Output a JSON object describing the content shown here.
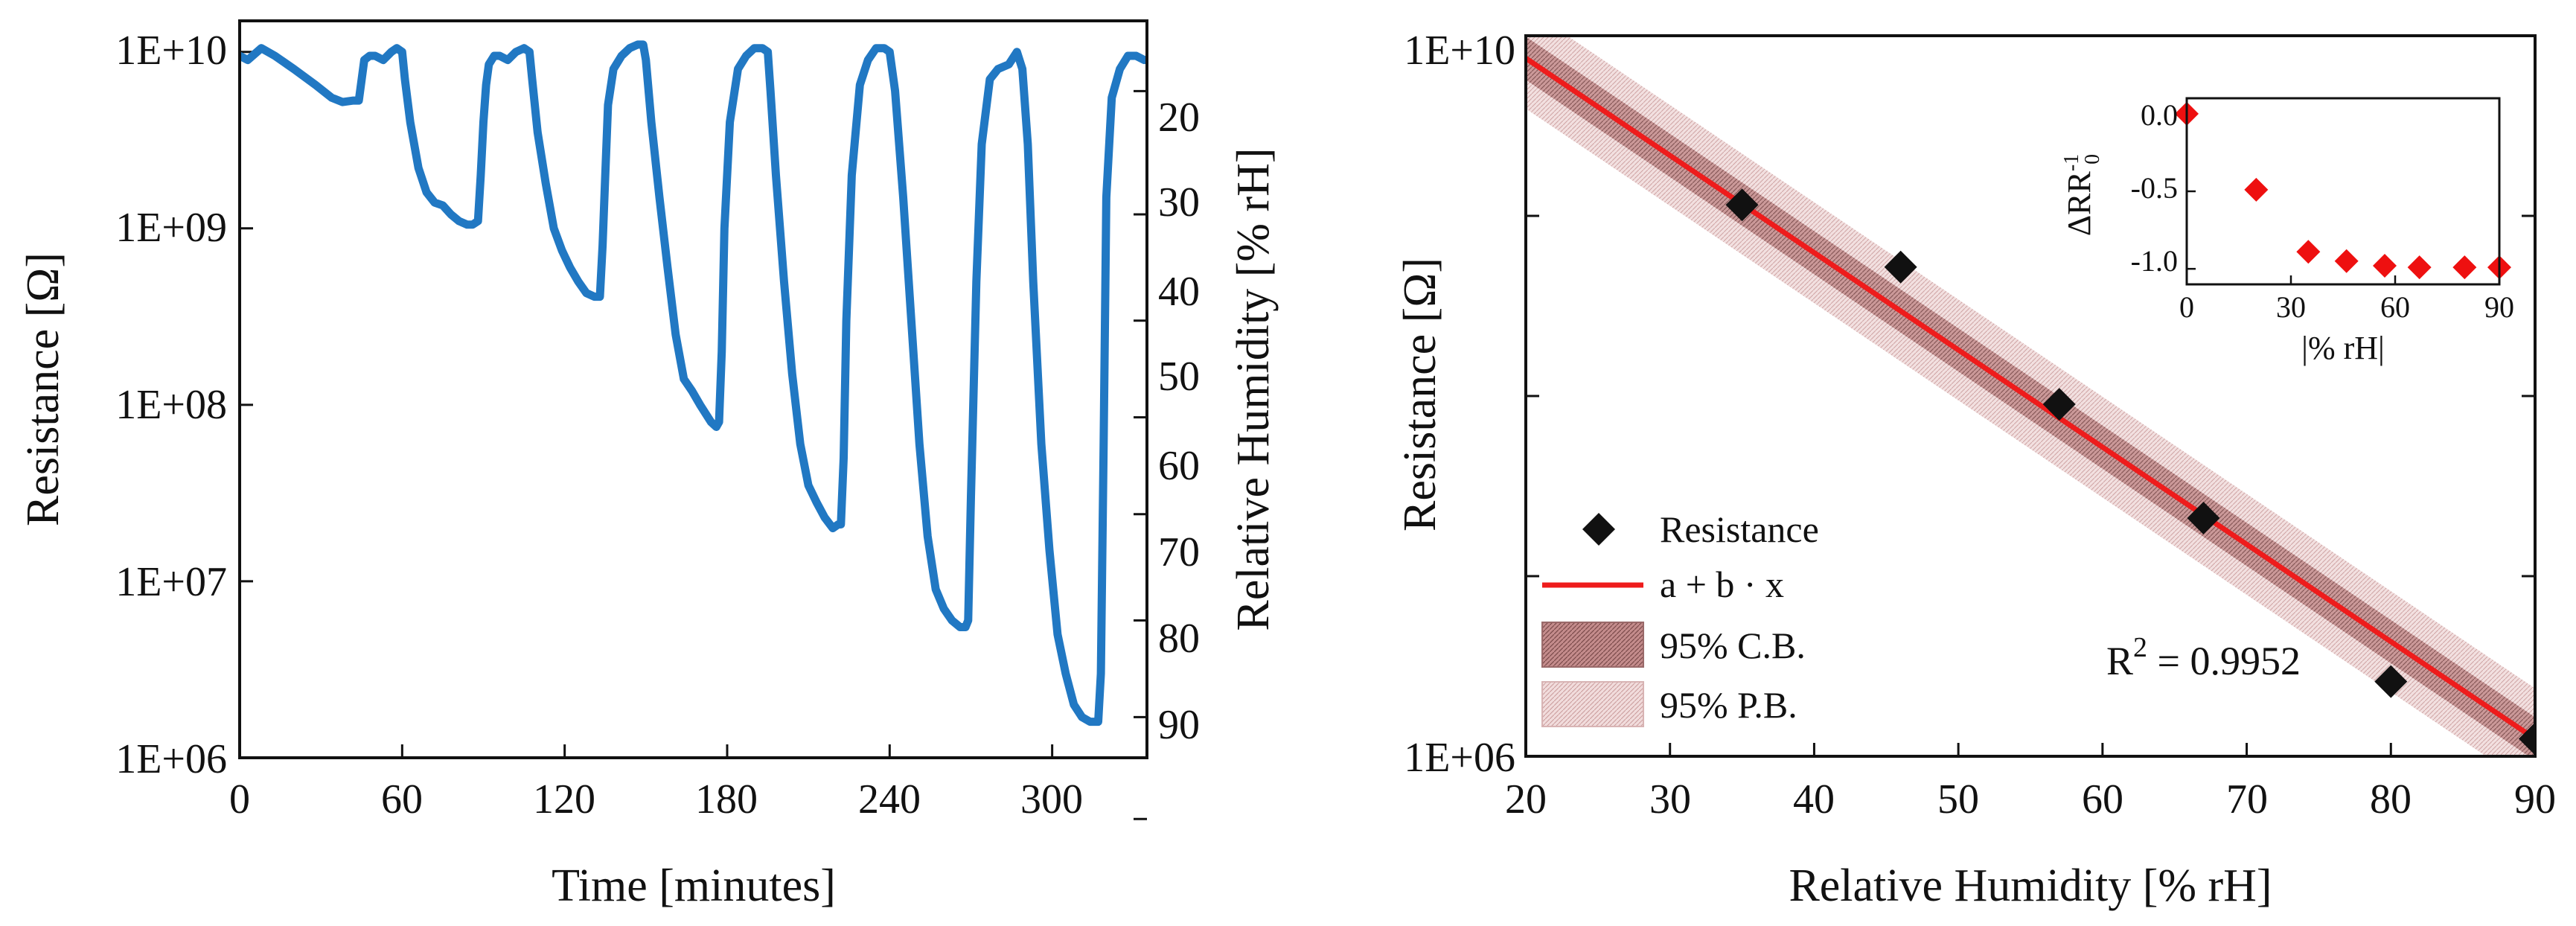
{
  "colors": {
    "trace": "#2178c3",
    "fit": "#ee1c1c",
    "marker": "#111111",
    "inset_marker": "#ee1010",
    "band_dark": "#b97a7a",
    "band_light": "#e8c9c9"
  },
  "chart_data": [
    {
      "id": "left",
      "type": "line",
      "xlabel": "Time [minutes]",
      "ylabel": "Resistance [Ω]",
      "y2label": "Relative Humidity [% rH]",
      "xlim": [
        0,
        335
      ],
      "ylim": [
        1000000,
        15000000000
      ],
      "yscale": "log",
      "xticks": [
        "0",
        "60",
        "120",
        "180",
        "240",
        "300"
      ],
      "xtick_values": [
        0,
        60,
        120,
        180,
        240,
        300
      ],
      "yticks": [
        "1E+06",
        "1E+07",
        "1E+08",
        "1E+09",
        "1E+10"
      ],
      "ytick_values": [
        1000000,
        10000000,
        100000000,
        1000000000,
        10000000000
      ],
      "y2ticks": [
        "20",
        "30",
        "40",
        "50",
        "60",
        "70",
        "80",
        "90"
      ],
      "y2tick_values": [
        6000000000,
        1200000000,
        300000000,
        85000000,
        24000000,
        6000000,
        1700000,
        450000
      ],
      "series": [
        {
          "name": "Resistance",
          "x": [
            0,
            3,
            8,
            13,
            20,
            28,
            34,
            38,
            42,
            44,
            46,
            48,
            50,
            53,
            56,
            58,
            60,
            61,
            63,
            66,
            69,
            72,
            75,
            78,
            81,
            84,
            86,
            88,
            89,
            90,
            91,
            92,
            94,
            96,
            99,
            102,
            105,
            107,
            108,
            110,
            113,
            116,
            119,
            122,
            125,
            128,
            131,
            133,
            134,
            135,
            136,
            138,
            141,
            144,
            147,
            149,
            150,
            152,
            155,
            158,
            161,
            164,
            167,
            170,
            174,
            176,
            177,
            178,
            179,
            181,
            184,
            187,
            190,
            193,
            195,
            196,
            198,
            201,
            204,
            207,
            210,
            213,
            216,
            219,
            221,
            222,
            223,
            224,
            226,
            229,
            232,
            235,
            238,
            240,
            242,
            245,
            248,
            251,
            254,
            257,
            260,
            263,
            266,
            268,
            269,
            270,
            272,
            274,
            277,
            280,
            284,
            287,
            289,
            291,
            293,
            296,
            299,
            302,
            305,
            308,
            311,
            314,
            316,
            317,
            318,
            319,
            320,
            322,
            325,
            328,
            331,
            334
          ],
          "y": [
            9500000000,
            9000000000,
            10500000000,
            9500000000,
            8000000000,
            6500000000,
            5500000000,
            5200000000,
            5300000000,
            5300000000,
            9000000000,
            9500000000,
            9500000000,
            9000000000,
            10000000000,
            10500000000,
            10000000000,
            7000000000,
            4000000000,
            2200000000,
            1600000000,
            1400000000,
            1350000000,
            1200000000,
            1100000000,
            1050000000,
            1050000000,
            1100000000,
            2000000000,
            4000000000,
            6500000000,
            8500000000,
            9500000000,
            9500000000,
            9000000000,
            10000000000,
            10500000000,
            10000000000,
            7000000000,
            3500000000,
            1800000000,
            1000000000,
            750000000,
            600000000,
            500000000,
            430000000,
            410000000,
            410000000,
            800000000,
            2000000000,
            5000000000,
            8000000000,
            9500000000,
            10500000000,
            11000000000,
            11000000000,
            9000000000,
            4000000000,
            1500000000,
            600000000,
            250000000,
            140000000,
            120000000,
            100000000,
            80000000,
            75000000,
            80000000,
            200000000,
            1000000000,
            4000000000,
            8000000000,
            9500000000,
            10500000000,
            10500000000,
            10000000000,
            6000000000,
            2000000000,
            500000000,
            150000000,
            60000000,
            35000000,
            28000000,
            23000000,
            20000000,
            21000000,
            21000000,
            50000000,
            300000000,
            2000000000,
            6500000000,
            9000000000,
            10500000000,
            10500000000,
            10000000000,
            6000000000,
            1500000000,
            300000000,
            60000000,
            18000000,
            9000000,
            7000000,
            6000000,
            5500000,
            5500000,
            6000000,
            30000000,
            500000000,
            3000000000,
            7000000000,
            8000000000,
            8500000000,
            10000000000,
            8000000000,
            3000000000,
            500000000,
            60000000,
            15000000,
            5000000,
            3000000,
            2000000,
            1700000,
            1600000,
            1600000,
            1600000,
            3000000,
            60000000,
            1500000000,
            5500000000,
            8000000000,
            9500000000,
            9500000000,
            9000000000
          ]
        }
      ]
    },
    {
      "id": "right",
      "type": "scatter",
      "xlabel": "Relative Humidity [% rH]",
      "ylabel": "Resistance [Ω]",
      "xlim": [
        20,
        90
      ],
      "ylim": [
        1000000,
        10000000000
      ],
      "yscale": "log",
      "xticks": [
        "20",
        "30",
        "40",
        "50",
        "60",
        "70",
        "80",
        "90"
      ],
      "xtick_values": [
        20,
        30,
        40,
        50,
        60,
        70,
        80,
        90
      ],
      "yticks": [
        "1E+06",
        "1E+10"
      ],
      "ytick_values": [
        1000000,
        10000000000
      ],
      "series": [
        {
          "name": "Resistance",
          "x": [
            35,
            46,
            57,
            67,
            80,
            90
          ],
          "y": [
            1150000000,
            520000000,
            90000000,
            21000000,
            2600000,
            1250000
          ]
        }
      ],
      "fit": {
        "label": "a + b · x",
        "x": [
          20,
          90
        ],
        "y": [
          7500000000,
          1250000
        ]
      },
      "bands": {
        "confidence": {
          "label": "95% C.B.",
          "log10_halfwidth": 0.12
        },
        "prediction": {
          "label": "95% P.B.",
          "log10_halfwidth": 0.28
        }
      },
      "annotation": {
        "r2_prefix": "R",
        "r2_power": "2",
        "r2_value": " = 0.9952"
      },
      "inset": {
        "type": "scatter",
        "xlabel": "|% rH|",
        "ylabel_main": "ΔRR",
        "ylabel_sup": "-1",
        "ylabel_sub": "0",
        "xlim": [
          0,
          90
        ],
        "ylim": [
          -1.1,
          0.1
        ],
        "xticks": [
          "0",
          "30",
          "60",
          "90"
        ],
        "xtick_values": [
          0,
          30,
          60,
          90
        ],
        "yticks": [
          "0.0",
          "-0.5",
          "-1.0"
        ],
        "ytick_values": [
          0,
          -0.5,
          -1.0
        ],
        "x": [
          0,
          20,
          35,
          46,
          57,
          67,
          80,
          90
        ],
        "y": [
          0.0,
          -0.49,
          -0.89,
          -0.95,
          -0.98,
          -0.99,
          -0.99,
          -0.99
        ]
      }
    }
  ]
}
